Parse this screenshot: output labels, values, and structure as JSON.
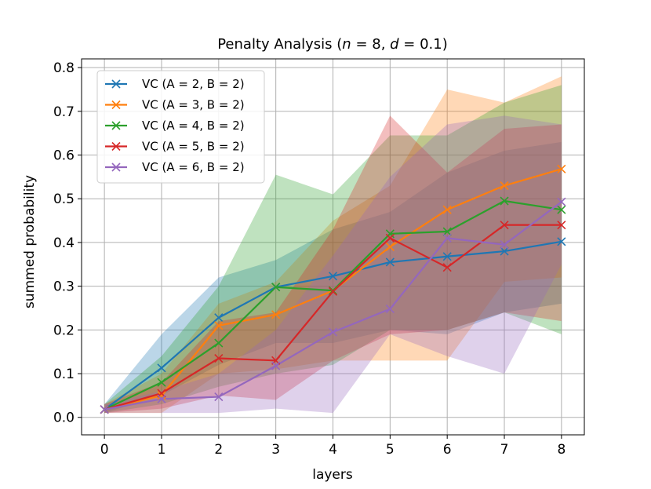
{
  "chart_data": {
    "type": "line",
    "title": "Penalty Analysis (n = 8, d = 0.1)",
    "xlabel": "layers",
    "ylabel": "summed probability",
    "xlim": [
      -0.4,
      8.4
    ],
    "ylim": [
      -0.04,
      0.82
    ],
    "x_ticks": [
      0,
      1,
      2,
      3,
      4,
      5,
      6,
      7,
      8
    ],
    "y_ticks": [
      0.0,
      0.1,
      0.2,
      0.3,
      0.4,
      0.5,
      0.6,
      0.7,
      0.8
    ],
    "grid": true,
    "legend_position": "upper left",
    "x": [
      0,
      1,
      2,
      3,
      4,
      5,
      6,
      7,
      8
    ],
    "series": [
      {
        "name": "VC (A = 2, B = 2)",
        "color": "#1f77b4",
        "values": [
          0.018,
          0.113,
          0.228,
          0.298,
          0.323,
          0.355,
          0.368,
          0.38,
          0.402
        ],
        "upper": [
          0.03,
          0.19,
          0.32,
          0.36,
          0.43,
          0.47,
          0.56,
          0.61,
          0.63
        ],
        "lower": [
          0.01,
          0.05,
          0.12,
          0.17,
          0.17,
          0.2,
          0.19,
          0.24,
          0.26
        ]
      },
      {
        "name": "VC (A = 3, B = 2)",
        "color": "#ff7f0e",
        "values": [
          0.018,
          0.05,
          0.21,
          0.235,
          0.29,
          0.39,
          0.475,
          0.53,
          0.568
        ],
        "upper": [
          0.03,
          0.1,
          0.26,
          0.31,
          0.45,
          0.53,
          0.75,
          0.72,
          0.78
        ],
        "lower": [
          0.01,
          0.01,
          0.1,
          0.11,
          0.13,
          0.13,
          0.13,
          0.31,
          0.32
        ]
      },
      {
        "name": "VC (A = 4, B = 2)",
        "color": "#2ca02c",
        "values": [
          0.018,
          0.08,
          0.17,
          0.298,
          0.29,
          0.42,
          0.425,
          0.495,
          0.475
        ],
        "upper": [
          0.03,
          0.14,
          0.3,
          0.555,
          0.51,
          0.645,
          0.645,
          0.72,
          0.76
        ],
        "lower": [
          0.01,
          0.03,
          0.07,
          0.1,
          0.12,
          0.2,
          0.2,
          0.24,
          0.19
        ]
      },
      {
        "name": "VC (A = 5, B = 2)",
        "color": "#d62728",
        "values": [
          0.018,
          0.055,
          0.135,
          0.13,
          0.288,
          0.41,
          0.343,
          0.44,
          0.44
        ],
        "upper": [
          0.03,
          0.08,
          0.22,
          0.24,
          0.43,
          0.69,
          0.56,
          0.66,
          0.67
        ],
        "lower": [
          0.01,
          0.02,
          0.05,
          0.04,
          0.13,
          0.19,
          0.2,
          0.24,
          0.22
        ]
      },
      {
        "name": "VC (A = 6, B = 2)",
        "color": "#9467bd",
        "values": [
          0.018,
          0.042,
          0.047,
          0.118,
          0.195,
          0.248,
          0.41,
          0.395,
          0.493
        ],
        "upper": [
          0.03,
          0.06,
          0.1,
          0.2,
          0.37,
          0.55,
          0.67,
          0.69,
          0.67
        ],
        "lower": [
          0.01,
          0.01,
          0.01,
          0.02,
          0.01,
          0.19,
          0.14,
          0.1,
          0.35
        ]
      }
    ]
  }
}
